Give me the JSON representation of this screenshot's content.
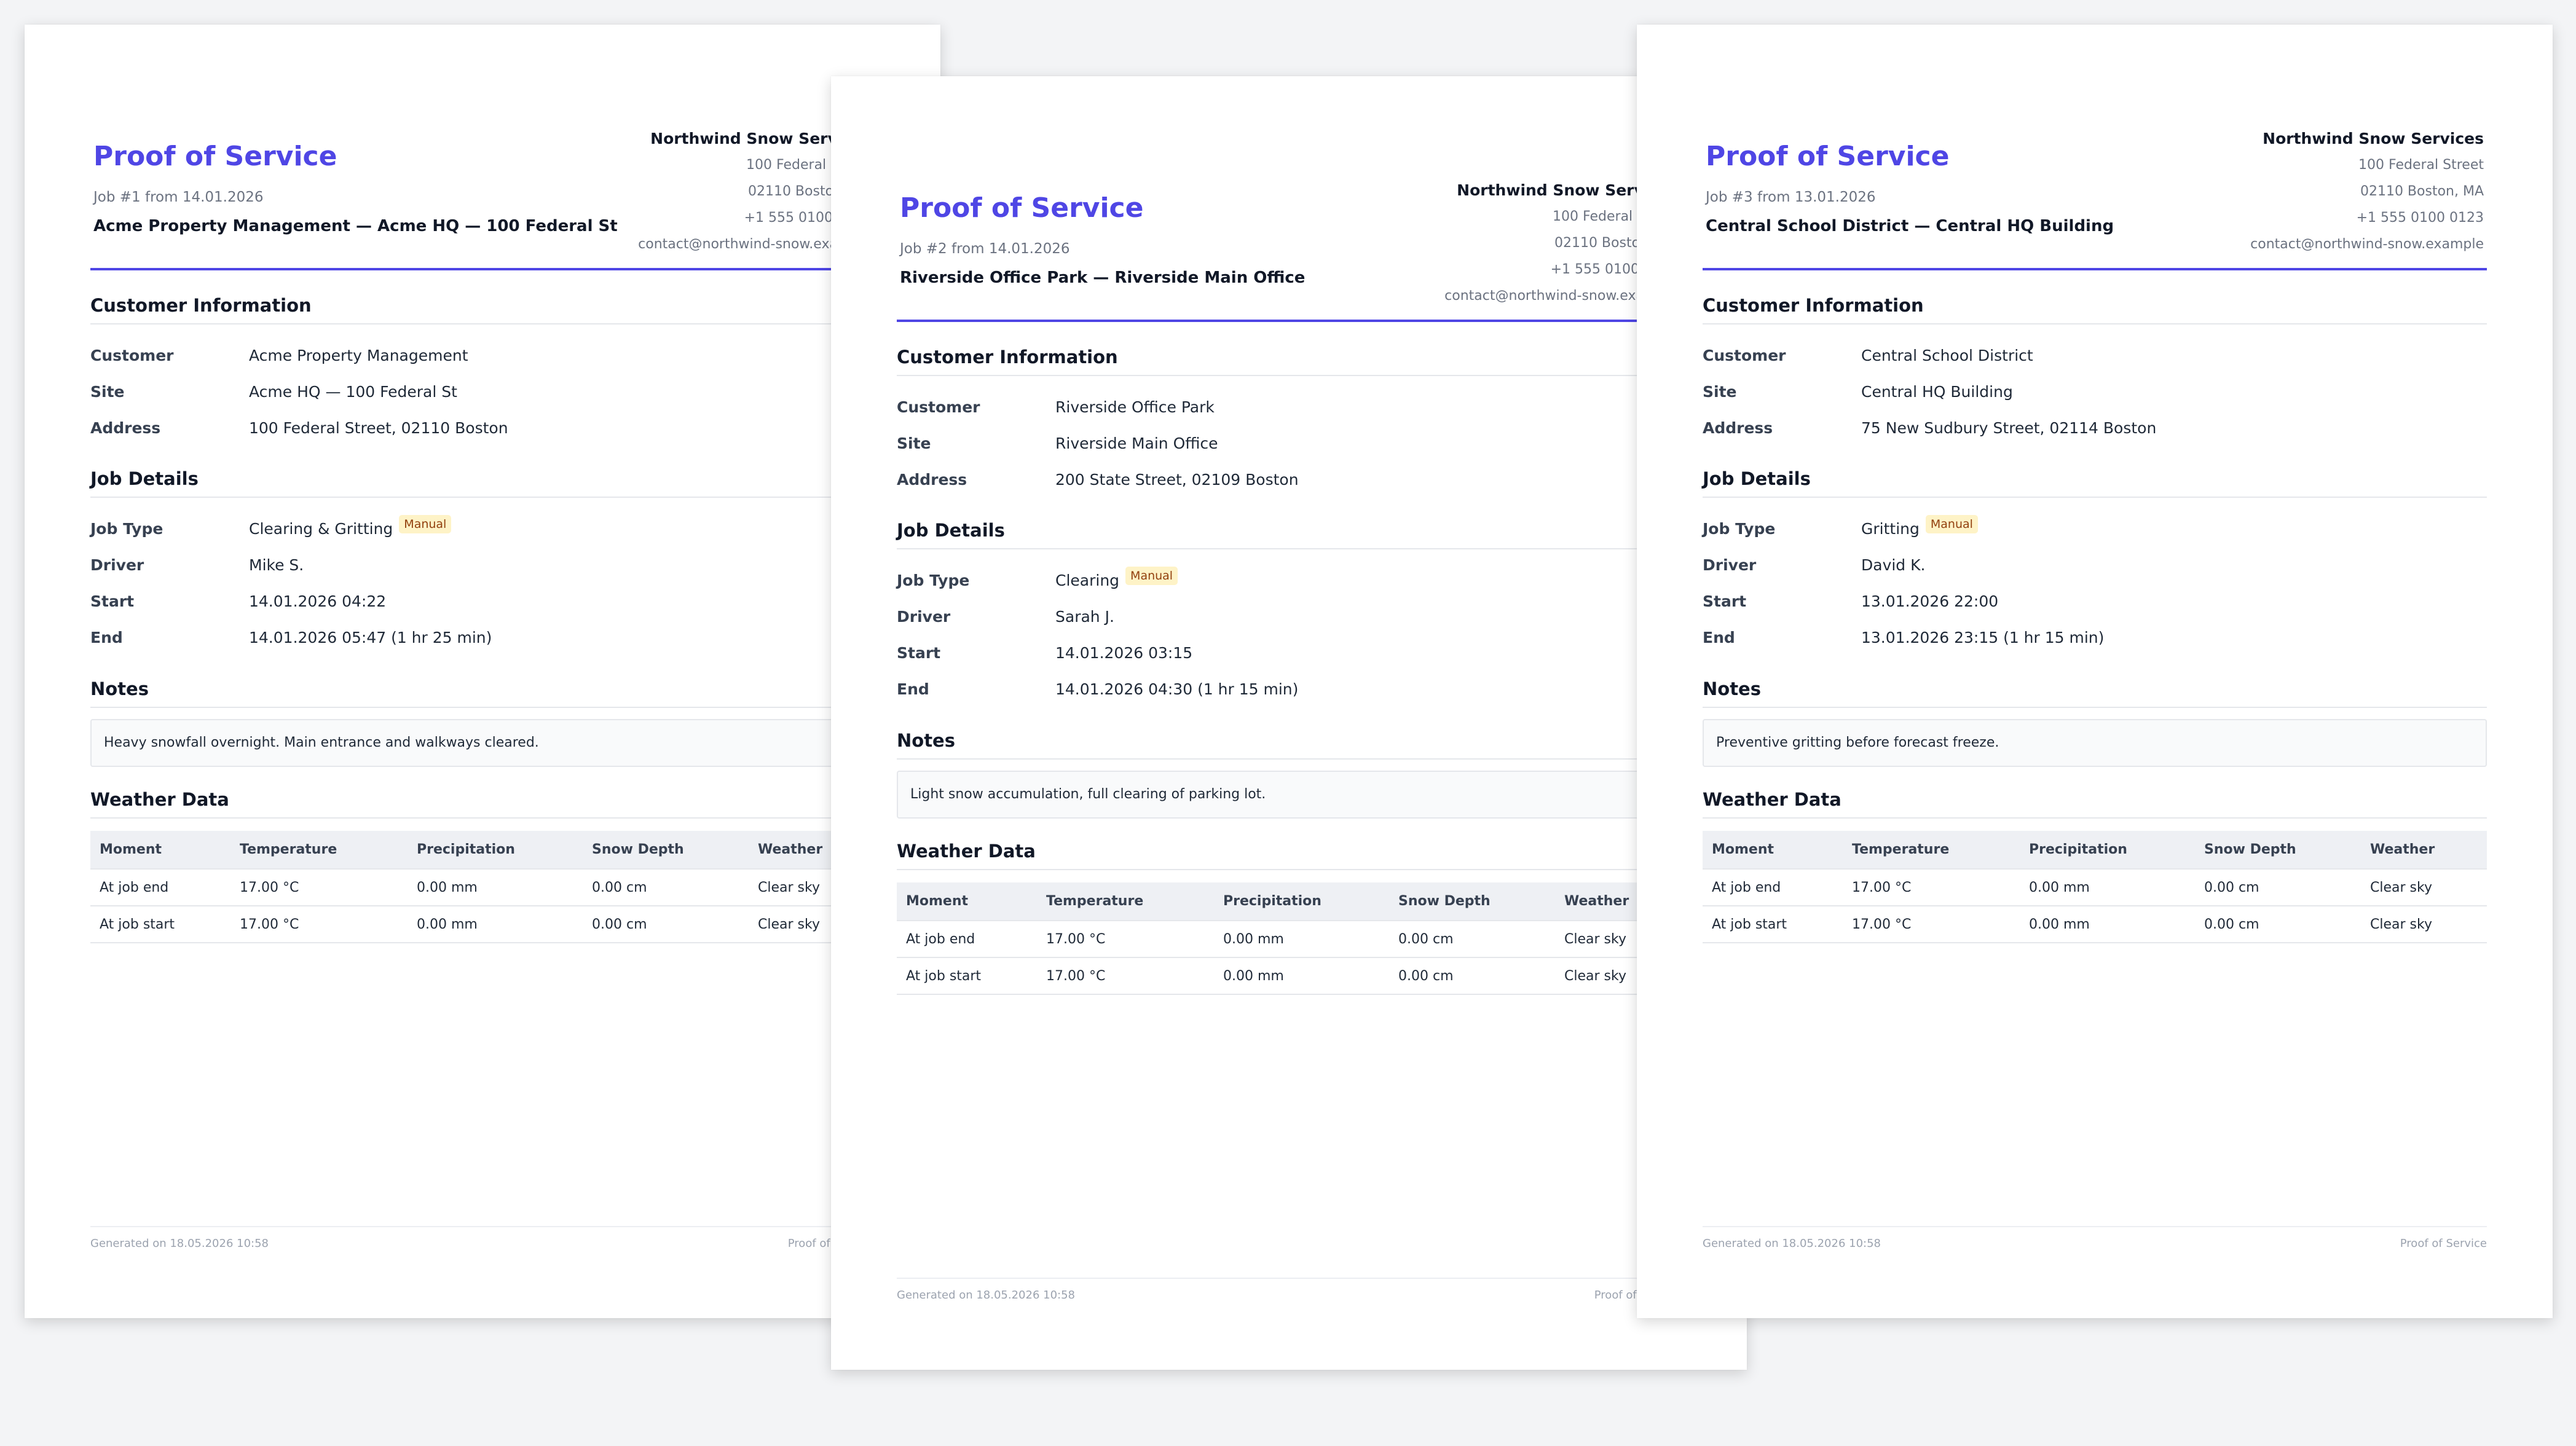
{
  "labels": {
    "title": "Proof of Service",
    "customer_info": "Customer Information",
    "job_details": "Job Details",
    "notes": "Notes",
    "weather_data": "Weather Data",
    "customer": "Customer",
    "site": "Site",
    "address": "Address",
    "job_type": "Job Type",
    "driver": "Driver",
    "start": "Start",
    "end": "End",
    "badge": "Manual",
    "footer_left": "Generated on 18.05.2026 10:58",
    "footer_right": "Proof of Service"
  },
  "company": {
    "name": "Northwind Snow Services",
    "street": "100 Federal Street",
    "city": "02110 Boston, MA",
    "phone": "+1 555 0100 0123",
    "email": "contact@northwind-snow.example"
  },
  "weather_headers": [
    "Moment",
    "Temperature",
    "Precipitation",
    "Snow Depth",
    "Weather"
  ],
  "docs": [
    {
      "job_line": "Job #1 from 14.01.2026",
      "customer_line": "Acme Property Management — Acme HQ — 100 Federal St",
      "customer": "Acme Property Management",
      "site": "Acme HQ — 100 Federal St",
      "address": "100 Federal Street, 02110 Boston",
      "job_type": "Clearing & Gritting",
      "driver": "Mike S.",
      "start": "14.01.2026 04:22",
      "end": "14.01.2026 05:47 (1 hr 25 min)",
      "notes": "Heavy snowfall overnight. Main entrance and walkways cleared.",
      "weather": [
        [
          "At job end",
          "17.00 °C",
          "0.00 mm",
          "0.00 cm",
          "Clear sky"
        ],
        [
          "At job start",
          "17.00 °C",
          "0.00 mm",
          "0.00 cm",
          "Clear sky"
        ]
      ]
    },
    {
      "job_line": "Job #2 from 14.01.2026",
      "customer_line": "Riverside Office Park — Riverside Main Office",
      "customer": "Riverside Office Park",
      "site": "Riverside Main Office",
      "address": "200 State Street, 02109 Boston",
      "job_type": "Clearing",
      "driver": "Sarah J.",
      "start": "14.01.2026 03:15",
      "end": "14.01.2026 04:30 (1 hr 15 min)",
      "notes": "Light snow accumulation, full clearing of parking lot.",
      "weather": [
        [
          "At job end",
          "17.00 °C",
          "0.00 mm",
          "0.00 cm",
          "Clear sky"
        ],
        [
          "At job start",
          "17.00 °C",
          "0.00 mm",
          "0.00 cm",
          "Clear sky"
        ]
      ]
    },
    {
      "job_line": "Job #3 from 13.01.2026",
      "customer_line": "Central School District — Central HQ Building",
      "customer": "Central School District",
      "site": "Central HQ Building",
      "address": "75 New Sudbury Street, 02114 Boston",
      "job_type": "Gritting",
      "driver": "David K.",
      "start": "13.01.2026 22:00",
      "end": "13.01.2026 23:15 (1 hr 15 min)",
      "notes": "Preventive gritting before forecast freeze.",
      "weather": [
        [
          "At job end",
          "17.00 °C",
          "0.00 mm",
          "0.00 cm",
          "Clear sky"
        ],
        [
          "At job start",
          "17.00 °C",
          "0.00 mm",
          "0.00 cm",
          "Clear sky"
        ]
      ]
    }
  ]
}
